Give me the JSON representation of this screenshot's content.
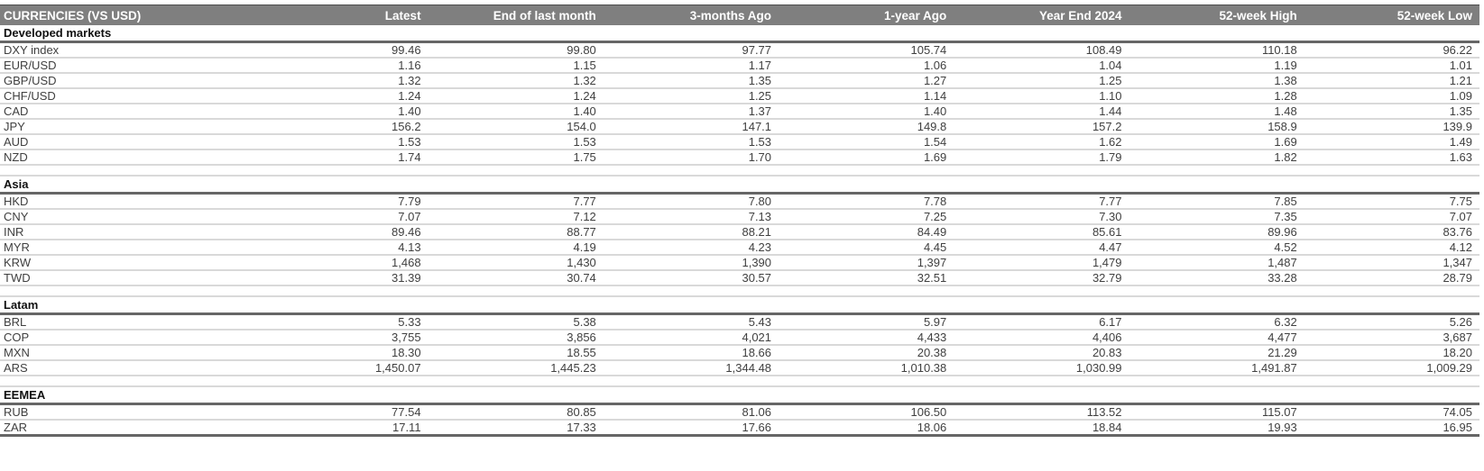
{
  "title": "CURRENCIES (VS USD)",
  "columns": [
    "Latest",
    "End of last month",
    "3-months Ago",
    "1-year Ago",
    "Year End 2024",
    "52-week High",
    "52-week Low"
  ],
  "sections": [
    {
      "name": "Developed markets",
      "rows": [
        {
          "label": "DXY index",
          "values": [
            "99.46",
            "99.80",
            "97.77",
            "105.74",
            "108.49",
            "110.18",
            "96.22"
          ]
        },
        {
          "label": "EUR/USD",
          "values": [
            "1.16",
            "1.15",
            "1.17",
            "1.06",
            "1.04",
            "1.19",
            "1.01"
          ]
        },
        {
          "label": "GBP/USD",
          "values": [
            "1.32",
            "1.32",
            "1.35",
            "1.27",
            "1.25",
            "1.38",
            "1.21"
          ]
        },
        {
          "label": "CHF/USD",
          "values": [
            "1.24",
            "1.24",
            "1.25",
            "1.14",
            "1.10",
            "1.28",
            "1.09"
          ]
        },
        {
          "label": "CAD",
          "values": [
            "1.40",
            "1.40",
            "1.37",
            "1.40",
            "1.44",
            "1.48",
            "1.35"
          ]
        },
        {
          "label": "JPY",
          "values": [
            "156.2",
            "154.0",
            "147.1",
            "149.8",
            "157.2",
            "158.9",
            "139.9"
          ]
        },
        {
          "label": "AUD",
          "values": [
            "1.53",
            "1.53",
            "1.53",
            "1.54",
            "1.62",
            "1.69",
            "1.49"
          ]
        },
        {
          "label": "NZD",
          "values": [
            "1.74",
            "1.75",
            "1.70",
            "1.69",
            "1.79",
            "1.82",
            "1.63"
          ]
        }
      ]
    },
    {
      "name": "Asia",
      "rows": [
        {
          "label": "HKD",
          "values": [
            "7.79",
            "7.77",
            "7.80",
            "7.78",
            "7.77",
            "7.85",
            "7.75"
          ]
        },
        {
          "label": "CNY",
          "values": [
            "7.07",
            "7.12",
            "7.13",
            "7.25",
            "7.30",
            "7.35",
            "7.07"
          ]
        },
        {
          "label": "INR",
          "values": [
            "89.46",
            "88.77",
            "88.21",
            "84.49",
            "85.61",
            "89.96",
            "83.76"
          ]
        },
        {
          "label": "MYR",
          "values": [
            "4.13",
            "4.19",
            "4.23",
            "4.45",
            "4.47",
            "4.52",
            "4.12"
          ]
        },
        {
          "label": "KRW",
          "values": [
            "1,468",
            "1,430",
            "1,390",
            "1,397",
            "1,479",
            "1,487",
            "1,347"
          ]
        },
        {
          "label": "TWD",
          "values": [
            "31.39",
            "30.74",
            "30.57",
            "32.51",
            "32.79",
            "33.28",
            "28.79"
          ]
        }
      ]
    },
    {
      "name": "Latam",
      "rows": [
        {
          "label": "BRL",
          "values": [
            "5.33",
            "5.38",
            "5.43",
            "5.97",
            "6.17",
            "6.32",
            "5.26"
          ]
        },
        {
          "label": "COP",
          "values": [
            "3,755",
            "3,856",
            "4,021",
            "4,433",
            "4,406",
            "4,477",
            "3,687"
          ]
        },
        {
          "label": "MXN",
          "values": [
            "18.30",
            "18.55",
            "18.66",
            "20.38",
            "20.83",
            "21.29",
            "18.20"
          ]
        },
        {
          "label": "ARS",
          "values": [
            "1,450.07",
            "1,445.23",
            "1,344.48",
            "1,010.38",
            "1,030.99",
            "1,491.87",
            "1,009.29"
          ]
        }
      ]
    },
    {
      "name": "EEMEA",
      "rows": [
        {
          "label": "RUB",
          "values": [
            "77.54",
            "80.85",
            "81.06",
            "106.50",
            "113.52",
            "115.07",
            "74.05"
          ]
        },
        {
          "label": "ZAR",
          "values": [
            "17.11",
            "17.33",
            "17.66",
            "18.06",
            "18.84",
            "19.93",
            "16.95"
          ]
        }
      ]
    }
  ],
  "colors": {
    "header_bg": "#7f7f7f",
    "header_text": "#ffffff",
    "section_text": "#111111",
    "section_border": "#666666",
    "row_border": "#d9d9d9",
    "text": "#404040"
  }
}
